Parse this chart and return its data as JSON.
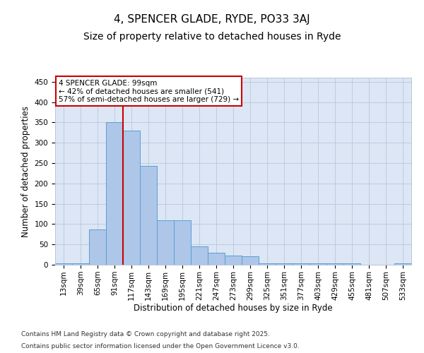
{
  "title1": "4, SPENCER GLADE, RYDE, PO33 3AJ",
  "title2": "Size of property relative to detached houses in Ryde",
  "xlabel": "Distribution of detached houses by size in Ryde",
  "ylabel": "Number of detached properties",
  "categories": [
    "13sqm",
    "39sqm",
    "65sqm",
    "91sqm",
    "117sqm",
    "143sqm",
    "169sqm",
    "195sqm",
    "221sqm",
    "247sqm",
    "273sqm",
    "299sqm",
    "325sqm",
    "351sqm",
    "377sqm",
    "403sqm",
    "429sqm",
    "455sqm",
    "481sqm",
    "507sqm",
    "533sqm"
  ],
  "values": [
    3,
    3,
    87,
    350,
    330,
    243,
    110,
    110,
    45,
    30,
    22,
    20,
    3,
    3,
    3,
    3,
    3,
    3,
    0,
    0,
    3
  ],
  "bar_color": "#aec6e8",
  "bar_edge_color": "#5a9fd4",
  "red_line_x": 3.5,
  "annotation_text": "4 SPENCER GLADE: 99sqm\n← 42% of detached houses are smaller (541)\n57% of semi-detached houses are larger (729) →",
  "annotation_box_color": "#cc0000",
  "ylim": [
    0,
    460
  ],
  "yticks": [
    0,
    50,
    100,
    150,
    200,
    250,
    300,
    350,
    400,
    450
  ],
  "bg_color": "#dce6f5",
  "footer_line1": "Contains HM Land Registry data © Crown copyright and database right 2025.",
  "footer_line2": "Contains public sector information licensed under the Open Government Licence v3.0.",
  "title_fontsize": 11,
  "subtitle_fontsize": 10,
  "axis_label_fontsize": 8.5,
  "tick_fontsize": 7.5,
  "footer_fontsize": 6.5
}
